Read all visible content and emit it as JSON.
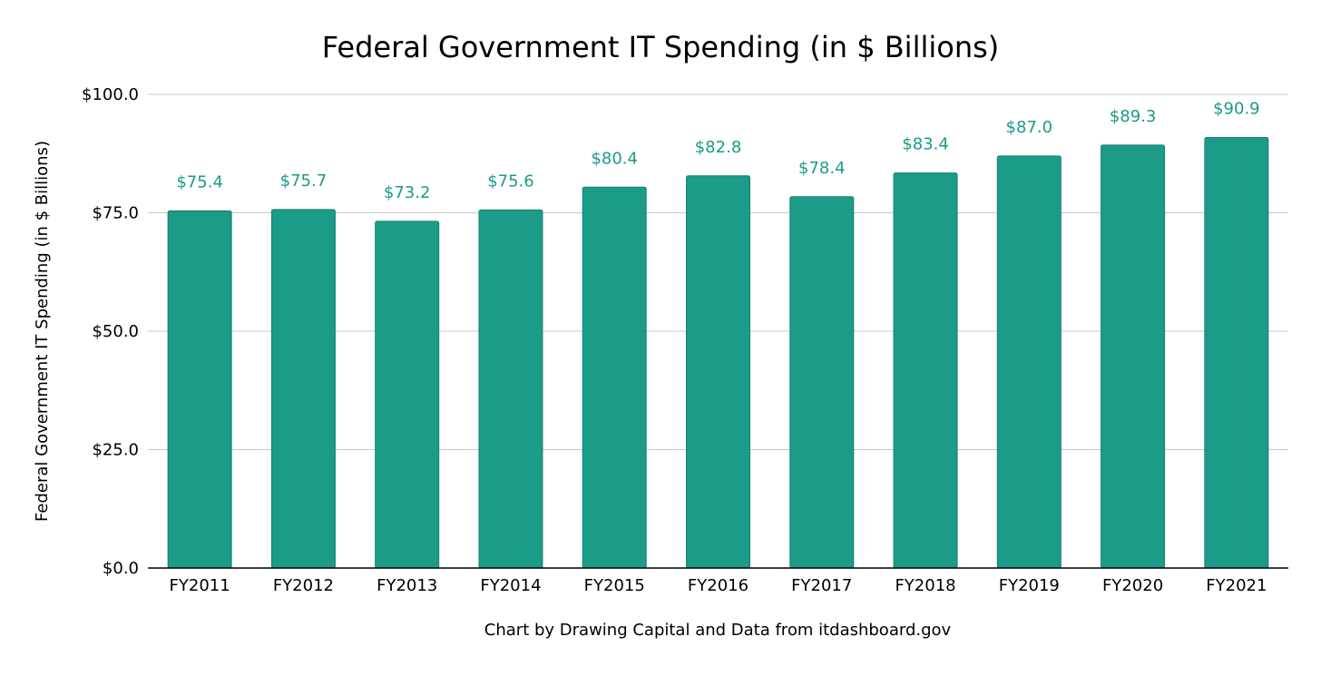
{
  "chart_data": {
    "type": "bar",
    "title": "Federal Government IT Spending (in $ Billions)",
    "xlabel": "",
    "ylabel": "Federal Government IT Spending (in $ Billions)",
    "caption": "Chart by Drawing Capital and Data from itdashboard.gov",
    "categories": [
      "FY2011",
      "FY2012",
      "FY2013",
      "FY2014",
      "FY2015",
      "FY2016",
      "FY2017",
      "FY2018",
      "FY2019",
      "FY2020",
      "FY2021"
    ],
    "values": [
      75.4,
      75.7,
      73.2,
      75.6,
      80.4,
      82.8,
      78.4,
      83.4,
      87.0,
      89.3,
      90.9
    ],
    "data_labels": [
      "$75.4",
      "$75.7",
      "$73.2",
      "$75.6",
      "$80.4",
      "$82.8",
      "$78.4",
      "$83.4",
      "$87.0",
      "$89.3",
      "$90.9"
    ],
    "ylim": [
      0,
      100
    ],
    "yticks": [
      0,
      25,
      50,
      75,
      100
    ],
    "ytick_labels": [
      "$0.0",
      "$25.0",
      "$50.0",
      "$75.0",
      "$100.0"
    ],
    "grid": true,
    "legend": "none",
    "colors": {
      "bar": "#1b9b88",
      "bar_edge": "#14826f",
      "data_label": "#1b9b88",
      "grid": "#c8c8c8",
      "axis": "#000000",
      "text": "#000000"
    }
  }
}
